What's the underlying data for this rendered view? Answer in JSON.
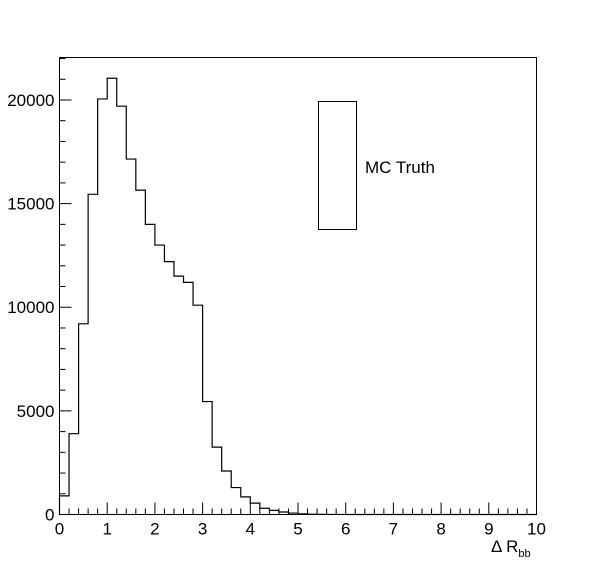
{
  "chart_data": {
    "type": "histogram",
    "xlabel": "Δ R",
    "xlabel_subscript": "bb",
    "xlim": [
      0,
      10
    ],
    "ylim": [
      0,
      22050
    ],
    "bin_width": 0.2,
    "bin_edges_start": 0,
    "x_ticks": [
      "0",
      "1",
      "2",
      "3",
      "4",
      "5",
      "6",
      "7",
      "8",
      "9",
      "10"
    ],
    "y_ticks": [
      "0",
      "5000",
      "10000",
      "15000",
      "20000"
    ],
    "y_tick_values": [
      0,
      5000,
      10000,
      15000,
      20000
    ],
    "grid": false,
    "legend": {
      "label": "MC Truth",
      "placement": "top-right"
    },
    "series": [
      {
        "name": "MC Truth",
        "values": [
          900,
          3900,
          9200,
          15450,
          20050,
          21050,
          19700,
          17150,
          15650,
          14000,
          13000,
          12200,
          11500,
          11200,
          10100,
          5450,
          3250,
          2100,
          1300,
          850,
          550,
          300,
          200,
          120,
          70,
          30,
          15,
          5,
          3,
          2,
          1,
          0,
          0,
          0,
          0,
          0,
          0,
          0,
          0,
          0,
          0,
          0,
          0,
          0,
          0,
          0,
          0,
          0,
          0,
          0
        ]
      }
    ]
  }
}
